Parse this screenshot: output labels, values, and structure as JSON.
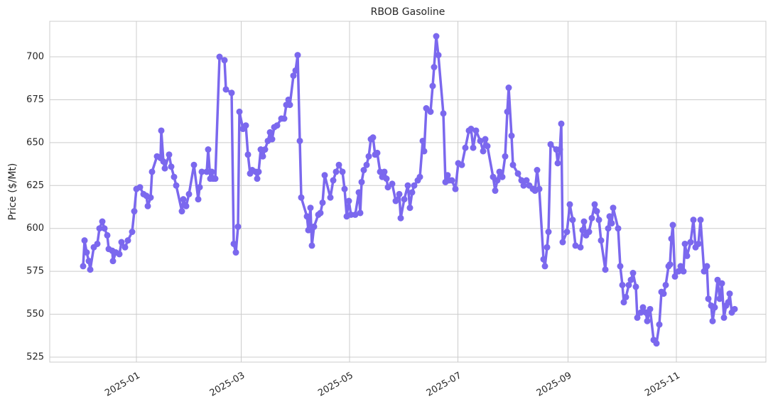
{
  "chart_data": {
    "type": "line",
    "title": "RBOB Gasoline",
    "ylabel": "Price ($/Mt)",
    "color": "#7b68ee",
    "grid": true,
    "xlim": [
      -48.8,
      354.4
    ],
    "xticks": [
      {
        "value": 0,
        "label": "2025-01"
      },
      {
        "value": 59,
        "label": "2025-03"
      },
      {
        "value": 120,
        "label": "2025-05"
      },
      {
        "value": 181,
        "label": "2025-07"
      },
      {
        "value": 243,
        "label": "2025-09"
      },
      {
        "value": 304,
        "label": "2025-11"
      }
    ],
    "ylim": [
      522.1,
      720.7
    ],
    "yticks": [
      525,
      550,
      575,
      600,
      625,
      650,
      675,
      700
    ],
    "x": [
      -30,
      -29.2,
      -28,
      -26.8,
      -26,
      -24,
      -22,
      -20.8,
      -19.2,
      -18,
      -16.4,
      -15.6,
      -13.6,
      -13.2,
      -11.6,
      -9.6,
      -8.4,
      -6.4,
      -4.8,
      -2.4,
      -1.2,
      0,
      2,
      4,
      5.6,
      6.4,
      8,
      8.8,
      11.6,
      13.6,
      14,
      15.2,
      16,
      18.4,
      19.6,
      21.2,
      22.4,
      25.6,
      26.4,
      28,
      29.6,
      32.4,
      34.8,
      35.6,
      36.8,
      39.6,
      40.4,
      41.6,
      42.4,
      43.2,
      44.4,
      46.8,
      49.6,
      50.4,
      53.6,
      54.8,
      56,
      57.2,
      58,
      60,
      61.6,
      62.8,
      64,
      65.2,
      67.2,
      68,
      68.8,
      70,
      71.2,
      72.4,
      74,
      75.2,
      76.4,
      77.6,
      79.2,
      81.6,
      83.2,
      84.4,
      85.6,
      86.4,
      88.4,
      89.6,
      90.8,
      92,
      92.8,
      96,
      96.8,
      98,
      98.8,
      100,
      102.4,
      103.6,
      104.8,
      106,
      109.2,
      110.8,
      112.4,
      114,
      116,
      117.2,
      118.4,
      119.6,
      120.8,
      123.2,
      125.2,
      126,
      126.8,
      128,
      129.6,
      130.8,
      132,
      133.2,
      134.4,
      135.6,
      137.2,
      138.4,
      139.6,
      140.8,
      141.6,
      144,
      146,
      148,
      148.8,
      150.8,
      152.8,
      154,
      155.2,
      156.4,
      158.4,
      159.6,
      161.2,
      162,
      163.2,
      165.6,
      166.8,
      167.6,
      168.8,
      170,
      172.8,
      174,
      175.2,
      176,
      177.6,
      179.6,
      181.2,
      183.2,
      185.2,
      187.2,
      188.4,
      189.6,
      191.2,
      193.6,
      195.2,
      196.4,
      197.6,
      200.8,
      202,
      203.2,
      204.4,
      206,
      207.6,
      208.8,
      209.6,
      211.2,
      212,
      214.8,
      216.8,
      218,
      219.6,
      221.2,
      223.2,
      224.4,
      225.6,
      226.8,
      229.2,
      230,
      231.2,
      232,
      233.2,
      236.4,
      237.2,
      238.4,
      239.2,
      240,
      242.4,
      244,
      245.6,
      247.2,
      250,
      251.2,
      252,
      253.2,
      254.8,
      256.4,
      258,
      259.2,
      260.4,
      261.6,
      264,
      265.6,
      266.4,
      267.6,
      268.4,
      271.2,
      272.4,
      273.6,
      274.4,
      275.6,
      277.2,
      278.4,
      279.6,
      281.2,
      282,
      284,
      285.2,
      286.8,
      287.6,
      289.2,
      291.2,
      292.8,
      294.4,
      295.6,
      296.8,
      298,
      299.6,
      300.4,
      301.2,
      302,
      303.2,
      305.2,
      306.4,
      308,
      308.8,
      310,
      312,
      313.6,
      314.8,
      316.4,
      317.6,
      319.6,
      321.2,
      322,
      323.6,
      324.4,
      325.6,
      327.2,
      328.4,
      329.6,
      330.8,
      332,
      333.2,
      334,
      335.2,
      336.8
    ],
    "values": [
      578,
      593,
      586,
      581,
      576,
      589,
      591,
      600,
      604,
      600,
      596,
      588,
      587,
      581,
      586,
      585,
      592,
      589,
      593,
      598,
      610,
      623,
      624,
      620,
      619,
      613,
      618,
      633,
      642,
      641,
      657,
      639,
      635,
      643,
      636,
      630,
      625,
      610,
      617,
      613,
      620,
      637,
      617,
      624,
      633,
      633,
      646,
      629,
      633,
      629,
      629,
      700,
      698,
      681,
      679,
      591,
      586,
      601,
      668,
      658,
      660,
      643,
      632,
      634,
      633,
      629,
      633,
      646,
      642,
      646,
      651,
      656,
      652,
      659,
      660,
      664,
      664,
      672,
      675,
      672,
      689,
      692,
      701,
      651,
      618,
      607,
      599,
      612,
      590,
      601,
      608,
      609,
      615,
      631,
      618,
      628,
      633,
      637,
      633,
      623,
      607,
      616,
      608,
      608,
      621,
      609,
      627,
      634,
      637,
      642,
      652,
      653,
      643,
      644,
      633,
      630,
      633,
      629,
      624,
      626,
      616,
      620,
      606,
      617,
      625,
      612,
      621,
      625,
      628,
      630,
      651,
      645,
      670,
      668,
      683,
      694,
      712,
      701,
      667,
      627,
      631,
      628,
      628,
      623,
      638,
      637,
      647,
      657,
      658,
      647,
      657,
      651,
      645,
      652,
      648,
      630,
      622,
      628,
      633,
      630,
      642,
      668,
      682,
      654,
      637,
      632,
      628,
      625,
      628,
      625,
      623,
      622,
      634,
      623,
      582,
      578,
      589,
      598,
      649,
      646,
      638,
      646,
      661,
      592,
      598,
      614,
      605,
      590,
      589,
      599,
      604,
      596,
      598,
      606,
      614,
      610,
      605,
      593,
      576,
      600,
      607,
      603,
      612,
      600,
      578,
      567,
      557,
      560,
      567,
      570,
      574,
      566,
      548,
      551,
      554,
      551,
      546,
      553,
      535,
      533,
      544,
      563,
      562,
      567,
      578,
      579,
      594,
      602,
      572,
      575,
      578,
      575,
      591,
      584,
      592,
      605,
      589,
      591,
      605,
      575,
      578,
      559,
      555,
      546,
      554,
      570,
      559,
      568,
      548,
      555,
      557,
      562,
      551,
      553
    ]
  }
}
